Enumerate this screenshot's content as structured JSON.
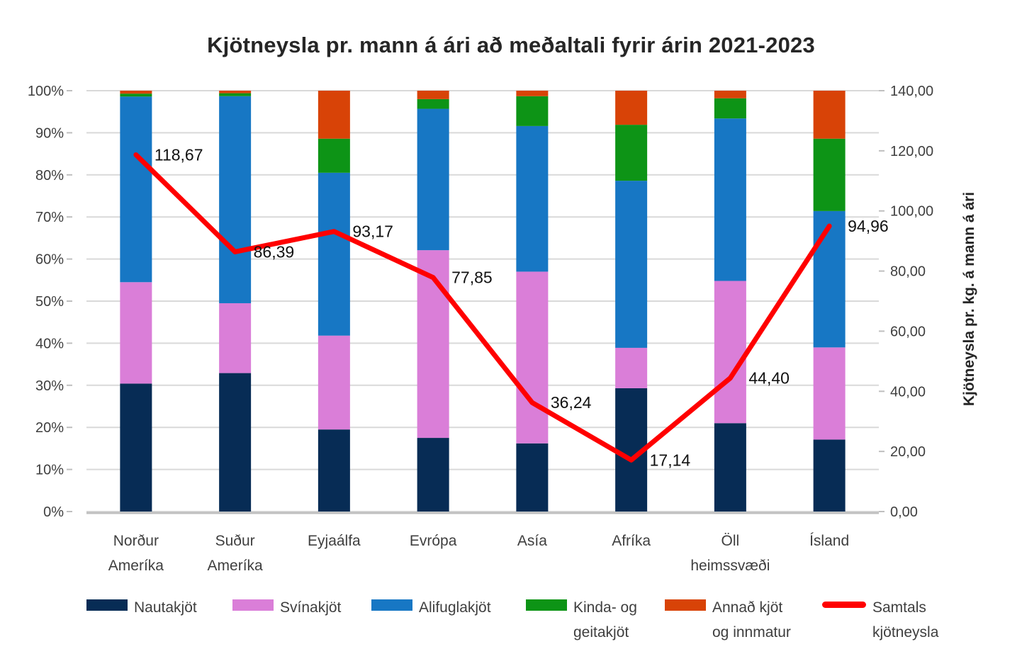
{
  "chart_data": {
    "type": "combo: 100%-stacked-bar + line (secondary axis)",
    "title": "Kjötneysla pr. mann á ári að meðaltali fyrir árin 2021-2023",
    "categories": [
      "Norður Ameríka",
      "Suður Ameríka",
      "Eyjaálfa",
      "Evrópa",
      "Asía",
      "Afríka",
      "Öll heimssvæði",
      "Ísland"
    ],
    "bar_unit": "percent of total",
    "series": [
      {
        "name": "Nautakjöt",
        "legend_lines": [
          "Nautakjöt"
        ],
        "color": "#072c55",
        "values": [
          30.4,
          32.9,
          19.5,
          17.5,
          16.2,
          29.3,
          21.0,
          17.1
        ]
      },
      {
        "name": "Svínakjöt",
        "legend_lines": [
          "Svínakjöt"
        ],
        "color": "#da7ed8",
        "values": [
          24.1,
          16.6,
          22.3,
          44.6,
          40.8,
          9.6,
          33.8,
          21.9
        ]
      },
      {
        "name": "Alifuglakjöt",
        "legend_lines": [
          "Alifuglakjöt"
        ],
        "color": "#1777c4",
        "values": [
          44.1,
          49.2,
          38.7,
          33.6,
          34.6,
          39.7,
          38.6,
          32.4
        ]
      },
      {
        "name": "Kinda- og geitakjöt",
        "legend_lines": [
          "Kinda- og",
          "geitakjöt"
        ],
        "color": "#0d9416",
        "values": [
          0.7,
          0.7,
          8.1,
          2.3,
          7.1,
          13.3,
          4.8,
          17.2
        ]
      },
      {
        "name": "Annað kjöt og innmatur",
        "legend_lines": [
          "Annað kjöt",
          "og innmatur"
        ],
        "color": "#d84307",
        "values": [
          0.7,
          0.6,
          11.4,
          2.0,
          1.3,
          8.1,
          1.8,
          11.4
        ]
      }
    ],
    "line_series": {
      "name": "Samtals kjötneysla",
      "legend_lines": [
        "Samtals",
        "kjötneysla"
      ],
      "color": "#ff0000",
      "values": [
        118.67,
        86.39,
        93.17,
        77.85,
        36.24,
        17.14,
        44.4,
        94.96
      ],
      "labels": [
        "118,67",
        "86,39",
        "93,17",
        "77,85",
        "36,24",
        "17,14",
        "44,40",
        "94,96"
      ]
    },
    "left_axis": {
      "min": 0,
      "max": 100,
      "ticks": [
        "100%",
        "90%",
        "80%",
        "70%",
        "60%",
        "50%",
        "40%",
        "30%",
        "20%",
        "10%",
        "0%"
      ]
    },
    "right_axis": {
      "min": 0,
      "max": 140,
      "title": "Kjötneysla pr. kg. á mann á ári",
      "ticks": [
        "140,00",
        "120,00",
        "100,00",
        "80,00",
        "60,00",
        "40,00",
        "20,00",
        "0,00"
      ]
    },
    "layout_hints": {
      "grid": "horizontal light gray",
      "legend_position": "bottom"
    },
    "colors": {
      "grid": "#d9d9d9",
      "tick": "#bfbfbf",
      "axis_text": "#3f3f3f",
      "data_label": "#111111",
      "title_text": "#262626"
    }
  }
}
